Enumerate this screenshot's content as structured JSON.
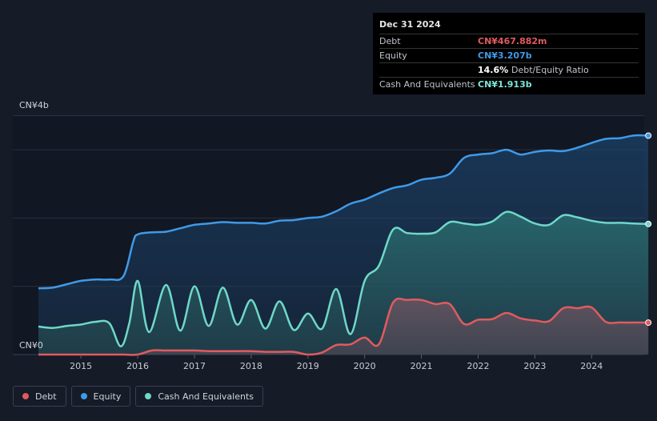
{
  "tooltip": {
    "date": "Dec 31 2024",
    "rows": [
      {
        "label": "Debt",
        "value": "CN¥467.882m",
        "color": "#e25a5f"
      },
      {
        "label": "Equity",
        "value": "CN¥3.207b",
        "color": "#3f9ae8"
      },
      {
        "label": "",
        "value": "14.6%",
        "suffix": "Debt/Equity Ratio",
        "color": "#ffffff"
      },
      {
        "label": "Cash And Equivalents",
        "value": "CN¥1.913b",
        "color": "#7ee6d6"
      }
    ]
  },
  "legend": [
    {
      "label": "Debt",
      "color": "#e25a5f"
    },
    {
      "label": "Equity",
      "color": "#3f9ae8"
    },
    {
      "label": "Cash And Equivalents",
      "color": "#6fd8c8"
    }
  ],
  "chart_data": {
    "type": "area",
    "title": "",
    "xlabel": "",
    "ylabel": "",
    "y_axis_labels": [
      "CN¥4b",
      "CN¥0"
    ],
    "x_ticks": [
      "2015",
      "2016",
      "2017",
      "2018",
      "2019",
      "2020",
      "2021",
      "2022",
      "2023",
      "2024"
    ],
    "xlim": [
      2014.25,
      2025.0
    ],
    "ylim": [
      0,
      3.5
    ],
    "unit": "CN¥b",
    "series": [
      {
        "name": "Equity",
        "color": "#3f9ae8",
        "x": [
          2014.25,
          2014.5,
          2014.75,
          2015.0,
          2015.25,
          2015.5,
          2015.75,
          2015.92,
          2016.0,
          2016.25,
          2016.5,
          2016.75,
          2017.0,
          2017.25,
          2017.5,
          2017.75,
          2018.0,
          2018.25,
          2018.5,
          2018.75,
          2019.0,
          2019.25,
          2019.5,
          2019.75,
          2020.0,
          2020.25,
          2020.5,
          2020.75,
          2021.0,
          2021.25,
          2021.5,
          2021.75,
          2022.0,
          2022.25,
          2022.5,
          2022.75,
          2023.0,
          2023.25,
          2023.5,
          2023.75,
          2024.0,
          2024.25,
          2024.5,
          2024.75,
          2025.0
        ],
        "values": [
          0.97,
          0.98,
          1.03,
          1.08,
          1.1,
          1.1,
          1.15,
          1.65,
          1.76,
          1.79,
          1.8,
          1.85,
          1.9,
          1.92,
          1.94,
          1.93,
          1.93,
          1.92,
          1.96,
          1.97,
          2.0,
          2.02,
          2.1,
          2.21,
          2.27,
          2.36,
          2.44,
          2.48,
          2.56,
          2.59,
          2.65,
          2.88,
          2.93,
          2.95,
          3.0,
          2.93,
          2.97,
          2.99,
          2.98,
          3.03,
          3.1,
          3.16,
          3.17,
          3.21,
          3.207
        ]
      },
      {
        "name": "Cash And Equivalents",
        "color": "#6fd8c8",
        "x": [
          2014.25,
          2014.5,
          2014.75,
          2015.0,
          2015.25,
          2015.5,
          2015.7,
          2015.85,
          2016.0,
          2016.2,
          2016.5,
          2016.75,
          2017.0,
          2017.25,
          2017.5,
          2017.75,
          2018.0,
          2018.25,
          2018.5,
          2018.75,
          2019.0,
          2019.25,
          2019.5,
          2019.75,
          2020.0,
          2020.25,
          2020.5,
          2020.75,
          2021.0,
          2021.25,
          2021.5,
          2021.75,
          2022.0,
          2022.25,
          2022.5,
          2022.75,
          2023.0,
          2023.25,
          2023.5,
          2023.75,
          2024.0,
          2024.25,
          2024.5,
          2024.75,
          2025.0
        ],
        "values": [
          0.41,
          0.39,
          0.42,
          0.44,
          0.48,
          0.46,
          0.12,
          0.45,
          1.08,
          0.33,
          1.02,
          0.35,
          1.0,
          0.42,
          0.98,
          0.44,
          0.8,
          0.38,
          0.78,
          0.36,
          0.6,
          0.38,
          0.96,
          0.3,
          1.08,
          1.3,
          1.83,
          1.78,
          1.77,
          1.79,
          1.94,
          1.92,
          1.9,
          1.95,
          2.09,
          2.02,
          1.92,
          1.9,
          2.04,
          2.01,
          1.96,
          1.93,
          1.93,
          1.92,
          1.913
        ]
      },
      {
        "name": "Debt",
        "color": "#e25a5f",
        "x": [
          2014.25,
          2014.5,
          2014.75,
          2015.0,
          2015.25,
          2015.5,
          2015.75,
          2016.0,
          2016.25,
          2016.5,
          2016.75,
          2017.0,
          2017.25,
          2017.5,
          2017.75,
          2018.0,
          2018.25,
          2018.5,
          2018.75,
          2019.0,
          2019.25,
          2019.5,
          2019.75,
          2020.0,
          2020.25,
          2020.5,
          2020.75,
          2021.0,
          2021.25,
          2021.5,
          2021.75,
          2022.0,
          2022.25,
          2022.5,
          2022.75,
          2023.0,
          2023.25,
          2023.5,
          2023.75,
          2024.0,
          2024.25,
          2024.5,
          2024.75,
          2025.0
        ],
        "values": [
          0.0,
          0.0,
          0.0,
          0.0,
          0.0,
          0.0,
          0.0,
          0.0,
          0.06,
          0.06,
          0.06,
          0.06,
          0.05,
          0.05,
          0.05,
          0.05,
          0.04,
          0.04,
          0.04,
          0.0,
          0.03,
          0.14,
          0.15,
          0.25,
          0.15,
          0.76,
          0.8,
          0.8,
          0.74,
          0.74,
          0.45,
          0.51,
          0.52,
          0.61,
          0.53,
          0.5,
          0.49,
          0.68,
          0.68,
          0.69,
          0.48,
          0.47,
          0.47,
          0.468
        ]
      }
    ]
  }
}
